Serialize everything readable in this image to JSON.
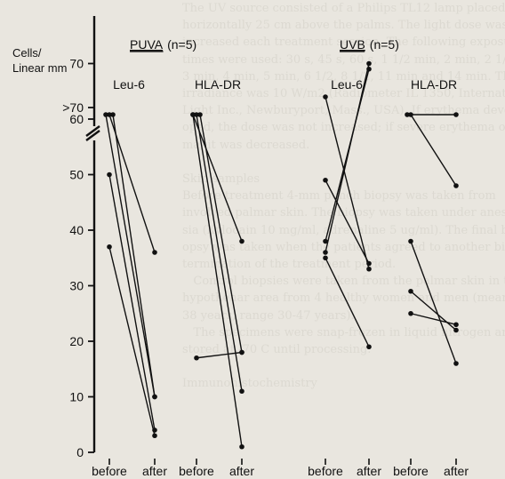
{
  "background_text": [
    "The UV source consisted of a Philips TL12 lamp placed",
    "horizontally 25 cm above the palms. The light dose was",
    "increased each treatment session. The following exposure",
    "times were used: 30 s, 45 s, 60 s, 1 1/2 min, 2 min, 2 1/2 min,",
    "3 min, 4 min, 5 min, 6 1/2, 8 1/2, 11 min and 14 min. The",
    "irradiance was 10 W/m2 (Radiometer IL 1350, International",
    "Light Inc., Newburyport, Mass., USA). If erythema devel-",
    "oped, the dose was not increased; if severe erythema or ede-",
    "ma, it was decreased.",
    "",
    "Skin samples",
    "Before treatment 4-mm punch biopsy was taken from",
    "involved palmar skin. The biopsy was taken under anesthe-",
    "sia (Xylocain 10 mg/ml, adrenaline 5 ug/ml). The final bi-",
    "opsy was taken when the patients agreed to another biopsy at",
    "termination of the treatment period.",
    "   Control biopsies were taken from the palmar skin in the",
    "hypothenar area from 4 healthy women and men (mean age",
    "38 years, range 30-47 years).",
    "   The specimens were snap-frozen in liquid nitrogen and",
    "stored at -70 C until processing.",
    "",
    "Immunohistochemistry"
  ],
  "chart_data": {
    "type": "line",
    "ylabel": "Cells/\nLinear mm",
    "y_ticks": [
      0,
      10,
      20,
      30,
      40,
      50,
      60,
      70
    ],
    "y_top_label": ">70",
    "ylim": [
      0,
      75
    ],
    "axis_break": true,
    "x_tick_labels": [
      "before",
      "after",
      "before",
      "after",
      "before",
      "after",
      "before",
      "after"
    ],
    "group_labels": [
      {
        "group": "PUVA",
        "n": "(n=5)"
      },
      {
        "group": "UVB",
        "n": "(n=5)"
      }
    ],
    "panels": [
      {
        "label": "Leu-6",
        "group": "PUVA",
        "pairs": [
          [
            50,
            4
          ],
          [
            37,
            3
          ],
          [
            72,
            10
          ],
          [
            72,
            10
          ],
          [
            72,
            36
          ]
        ]
      },
      {
        "label": "HLA-DR",
        "group": "PUVA",
        "pairs": [
          [
            72,
            38
          ],
          [
            72,
            11
          ],
          [
            72,
            18
          ],
          [
            72,
            1
          ],
          [
            17,
            18
          ]
        ]
      },
      {
        "label": "Leu-6",
        "group": "UVB",
        "pairs": [
          [
            64,
            33
          ],
          [
            49,
            34
          ],
          [
            38,
            69
          ],
          [
            36,
            70
          ],
          [
            35,
            19
          ]
        ]
      },
      {
        "label": "HLA-DR",
        "group": "UVB",
        "pairs": [
          [
            72,
            72
          ],
          [
            72,
            48
          ],
          [
            38,
            16
          ],
          [
            29,
            22
          ],
          [
            25,
            23
          ]
        ]
      }
    ]
  }
}
